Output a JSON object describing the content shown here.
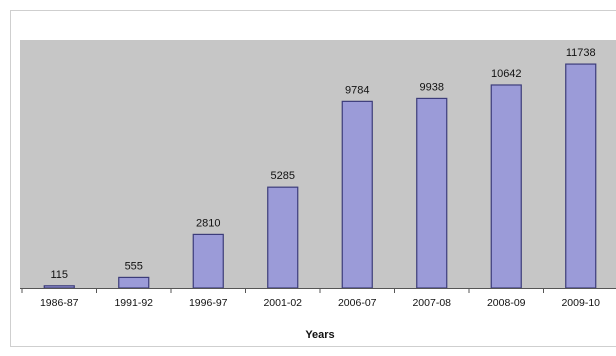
{
  "chart_data": {
    "type": "bar",
    "title": "",
    "xlabel": "Years",
    "ylabel": "",
    "categories": [
      "1986-87",
      "1991-92",
      "1996-97",
      "2001-02",
      "2006-07",
      "2007-08",
      "2008-09",
      "2009-10"
    ],
    "values": [
      115,
      555,
      2810,
      5285,
      9784,
      9938,
      10642,
      11738
    ],
    "ylim": [
      0,
      13000
    ],
    "grid": false,
    "legend": "none",
    "colors": {
      "bar_fill": "#9b9bd8",
      "bar_stroke": "#3c3c7a",
      "plot_background": "#c6c6c6",
      "baseline": "#555555",
      "frame": "#cfcfcf"
    }
  }
}
